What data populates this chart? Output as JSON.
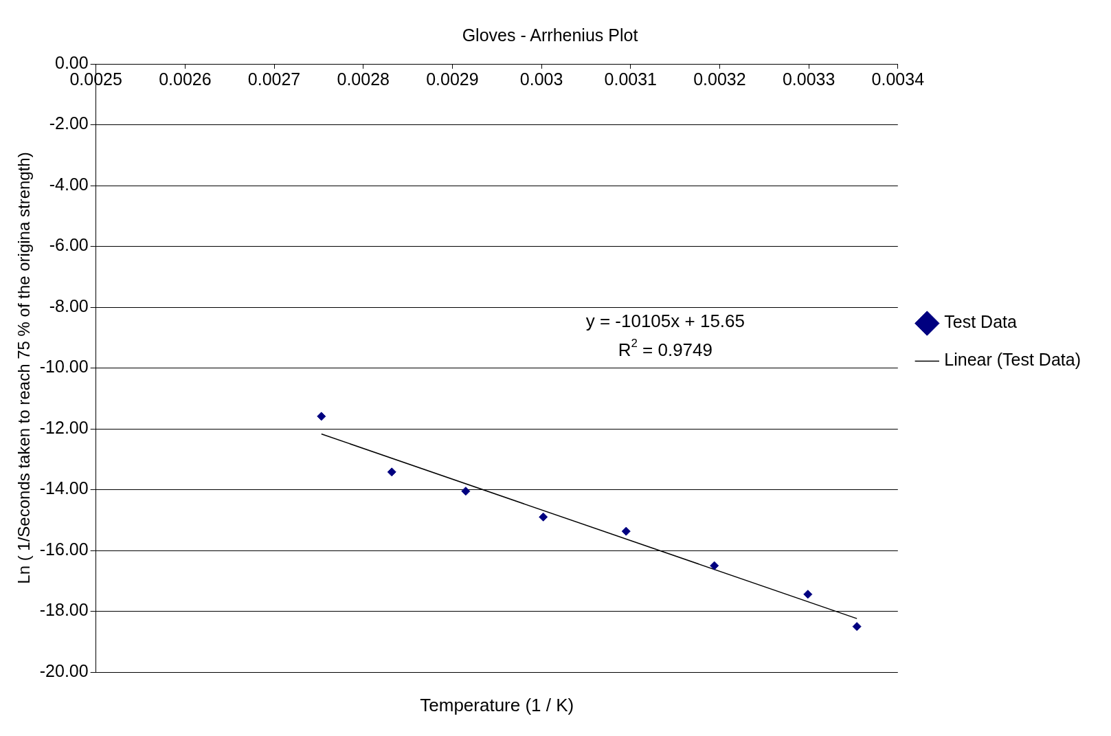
{
  "chart_data": {
    "type": "scatter",
    "title": "Gloves - Arrhenius Plot",
    "xlabel": "Temperature (1 / K)",
    "ylabel": "Ln ( 1/Seconds taken to reach 75 % of the origina strength)",
    "series": [
      {
        "name": "Test Data",
        "type": "scatter",
        "color": "#000080",
        "marker": "diamond",
        "x": [
          0.002753,
          0.002832,
          0.002915,
          0.003002,
          0.003095,
          0.003194,
          0.003299,
          0.003354
        ],
        "values": [
          -11.59,
          -13.42,
          -14.05,
          -14.9,
          -15.37,
          -16.5,
          -17.44,
          -18.5
        ]
      },
      {
        "name": "Linear (Test Data)",
        "type": "line",
        "color": "#000000",
        "marker": "none",
        "x": [
          0.002753,
          0.003354
        ],
        "values": [
          -12.17,
          -18.24
        ]
      }
    ],
    "annotations": [
      "y = -10105x + 15.65",
      "R$^{2}$ = 0.9749"
    ],
    "xlim": [
      0.0025,
      0.0034
    ],
    "xticks": [
      0.0025,
      0.0026,
      0.0027,
      0.0028,
      0.0029,
      0.003,
      0.0031,
      0.0032,
      0.0033,
      0.0034
    ],
    "ylim": [
      -20,
      0
    ],
    "yticks": [
      {
        "value": 0,
        "label": "0.00"
      },
      {
        "value": -2,
        "label": "-2.00"
      },
      {
        "value": -4,
        "label": "-4.00"
      },
      {
        "value": -6,
        "label": "-6.00"
      },
      {
        "value": -8,
        "label": "-8.00"
      },
      {
        "value": -10,
        "label": "-10.00"
      },
      {
        "value": -12,
        "label": "-12.00"
      },
      {
        "value": -14,
        "label": "-14.00"
      },
      {
        "value": -16,
        "label": "-16.00"
      },
      {
        "value": -18,
        "label": "-18.00"
      },
      {
        "value": -20,
        "label": "-20.00"
      }
    ],
    "grid": "y",
    "legend": "right"
  }
}
